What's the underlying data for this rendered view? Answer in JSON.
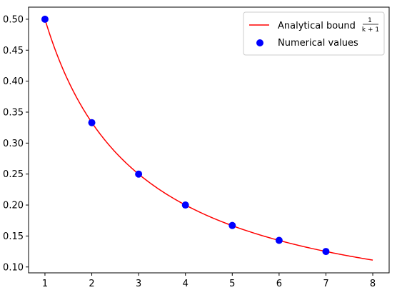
{
  "chart_data": {
    "type": "line",
    "title": "",
    "xlabel": "",
    "ylabel": "",
    "xlim": [
      0.65,
      8.35
    ],
    "ylim": [
      0.0905,
      0.5195
    ],
    "grid": false,
    "legend_position": "top-right",
    "x_ticks": [
      1,
      2,
      3,
      4,
      5,
      6,
      7,
      8
    ],
    "x_tick_labels": [
      "1",
      "2",
      "3",
      "4",
      "5",
      "6",
      "7",
      "8"
    ],
    "y_ticks": [
      0.1,
      0.15,
      0.2,
      0.25,
      0.3,
      0.35,
      0.4,
      0.45,
      0.5
    ],
    "y_tick_labels": [
      "0.10",
      "0.15",
      "0.20",
      "0.25",
      "0.30",
      "0.35",
      "0.40",
      "0.45",
      "0.50"
    ],
    "series": [
      {
        "name": "Analytical bound",
        "name_fraction": {
          "numerator": "1",
          "denominator": "k + 1"
        },
        "kind": "line",
        "color": "#ff0000",
        "x_range": [
          1,
          8
        ],
        "formula": "1/(k+1)"
      },
      {
        "name": "Numerical values",
        "kind": "scatter",
        "color": "#0000ff",
        "x": [
          1,
          2,
          3,
          4,
          5,
          6,
          7
        ],
        "y": [
          0.5,
          0.333,
          0.25,
          0.2,
          0.167,
          0.143,
          0.125
        ]
      }
    ]
  }
}
